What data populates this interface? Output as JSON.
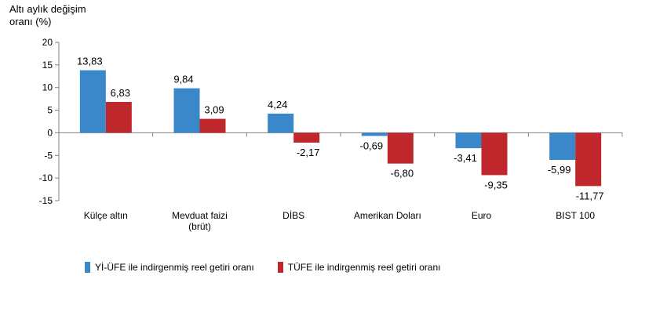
{
  "chart_data": {
    "type": "bar",
    "ylabel_lines": [
      "Altı aylık değişim",
      "oranı (%)"
    ],
    "ylim": [
      -15,
      20
    ],
    "yticks": [
      20,
      15,
      10,
      5,
      0,
      -5,
      -10,
      -15
    ],
    "grid": false,
    "legend_position": "bottom",
    "categories": [
      [
        "Külçe altın"
      ],
      [
        "Mevduat faizi",
        "(brüt)"
      ],
      [
        "DİBS"
      ],
      [
        "Amerikan Doları"
      ],
      [
        "Euro"
      ],
      [
        "BIST 100"
      ]
    ],
    "series": [
      {
        "name": "Yİ-ÜFE ile indirgenmiş reel getiri oranı",
        "color": "#3a87c9",
        "values": [
          13.83,
          9.84,
          4.24,
          -0.69,
          -3.41,
          -5.99
        ],
        "labels": [
          "13,83",
          "9,84",
          "4,24",
          "-0,69",
          "-3,41",
          "-5,99"
        ]
      },
      {
        "name": "TÜFE ile indirgenmiş reel getiri oranı",
        "color": "#c0272d",
        "values": [
          6.83,
          3.09,
          -2.17,
          -6.8,
          -9.35,
          -11.77
        ],
        "labels": [
          "6,83",
          "3,09",
          "-2,17",
          "-6,80",
          "-9,35",
          "-11,77"
        ]
      }
    ]
  }
}
